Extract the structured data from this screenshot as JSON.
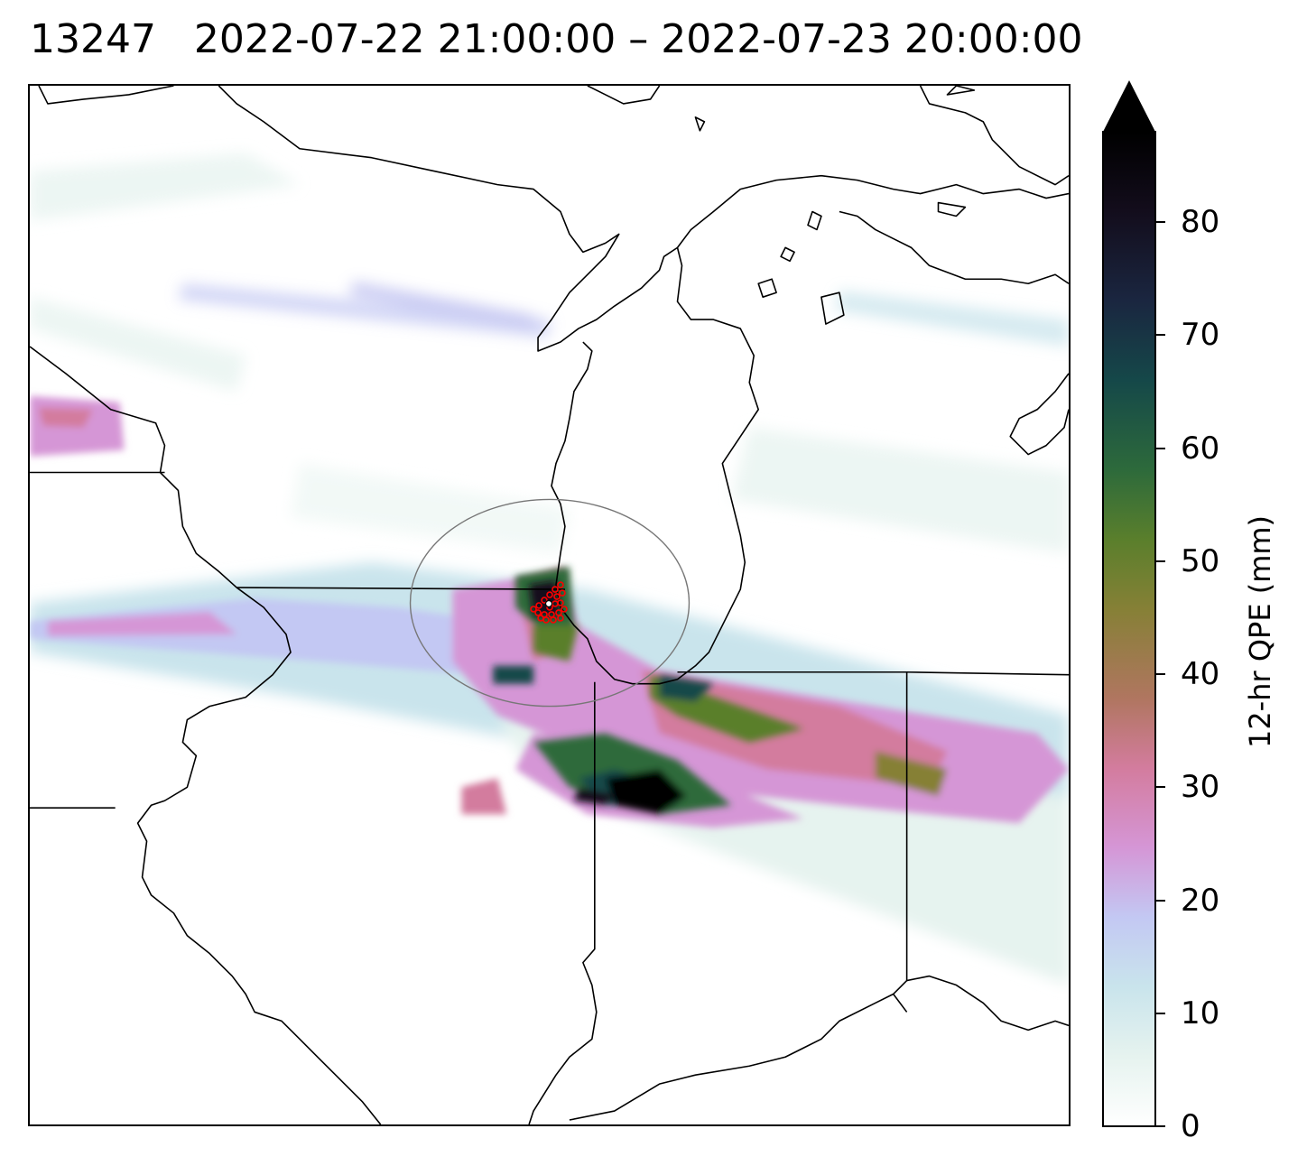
{
  "title": {
    "id": "13247",
    "start": "2022-07-22 21:00:00",
    "sep": "–",
    "end": "2022-07-23 20:00:00",
    "full": "13247   2022-07-22 21:00:00 – 2022-07-23 20:00:00"
  },
  "colorbar": {
    "label": "12-hr QPE (mm)",
    "ticks": [
      "0",
      "10",
      "20",
      "30",
      "40",
      "50",
      "60",
      "70",
      "80"
    ],
    "range": [
      0,
      88
    ],
    "extend": "max",
    "cmap": [
      "#ffffff",
      "#e6f3ef",
      "#c9e4ec",
      "#c3c8f3",
      "#d596d6",
      "#d37c9e",
      "#b07660",
      "#868036",
      "#5a7f2c",
      "#2d6a3b",
      "#154849",
      "#1a2640",
      "#130d1c",
      "#000000"
    ]
  },
  "map": {
    "features": [
      "state boundaries",
      "coastlines",
      "Lake Michigan",
      "Lake Superior",
      "Lake Huron"
    ],
    "gauge_marker_color": "#ff0000",
    "circle_color": "#777777"
  }
}
